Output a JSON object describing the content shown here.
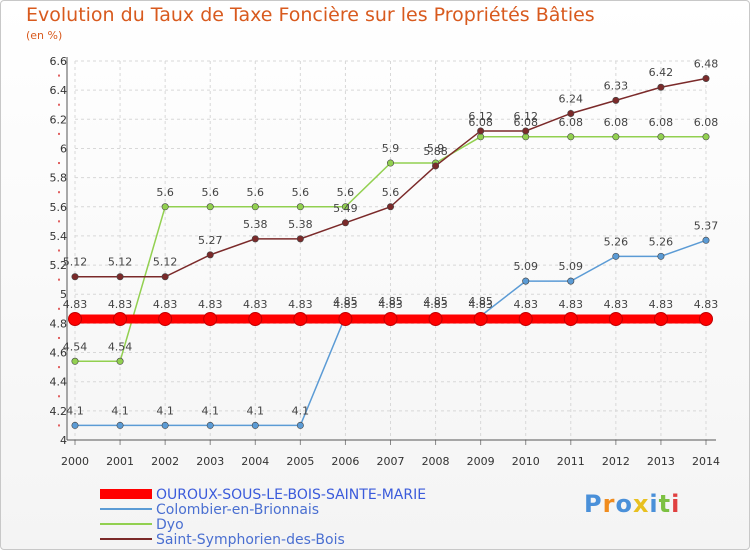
{
  "title": "Evolution du Taux de Taxe Foncière sur les Propriétés Bâties",
  "unit": "(en %)",
  "logo_text": "Proxiti",
  "chart_data": {
    "type": "line",
    "x": [
      "2000",
      "2001",
      "2002",
      "2003",
      "2004",
      "2005",
      "2006",
      "2007",
      "2008",
      "2009",
      "2010",
      "2011",
      "2012",
      "2013",
      "2014"
    ],
    "ylim": [
      4,
      6.6
    ],
    "yticks": [
      "4",
      "4.2",
      "4.4",
      "4.6",
      "4.8",
      "5",
      "5.2",
      "5.4",
      "5.6",
      "5.8",
      "6",
      "6.2",
      "6.4",
      "6.6"
    ],
    "grid": true,
    "legend_position": "bottom-left",
    "series": [
      {
        "name": "OUROUX-SOUS-LE-BOIS-SAINTE-MARIE",
        "color": "#ff0000",
        "values": [
          4.83,
          4.83,
          4.83,
          4.83,
          4.83,
          4.83,
          4.83,
          4.83,
          4.83,
          4.83,
          4.83,
          4.83,
          4.83,
          4.83,
          4.83
        ],
        "labels": [
          "4.83",
          "4.83",
          "4.83",
          "4.83",
          "4.83",
          "4.83",
          "4.83",
          "4.83",
          "4.83",
          "4.83",
          "4.83",
          "4.83",
          "4.83",
          "4.83",
          "4.83"
        ]
      },
      {
        "name": "Colombier-en-Brionnais",
        "color": "#5b9bd5",
        "values": [
          4.1,
          4.1,
          4.1,
          4.1,
          4.1,
          4.1,
          4.85,
          4.85,
          4.85,
          4.85,
          5.09,
          5.09,
          5.26,
          5.26,
          5.37
        ],
        "labels": [
          "4.1",
          "4.1",
          "4.1",
          "4.1",
          "4.1",
          "4.1",
          "4.85",
          "4.85",
          "4.85",
          "4.85",
          "5.09",
          "5.09",
          "5.26",
          "5.26",
          "5.37"
        ]
      },
      {
        "name": "Dyo",
        "color": "#92d050",
        "values": [
          4.54,
          4.54,
          5.6,
          5.6,
          5.6,
          5.6,
          5.6,
          5.9,
          5.9,
          6.08,
          6.08,
          6.08,
          6.08,
          6.08,
          6.08
        ],
        "labels": [
          "4.54",
          "4.54",
          "5.6",
          "5.6",
          "5.6",
          "5.6",
          "5.6",
          "5.9",
          "5.9",
          "6.08",
          "6.08",
          "6.08",
          "6.08",
          "6.08",
          "6.08"
        ]
      },
      {
        "name": "Saint-Symphorien-des-Bois",
        "color": "#7b2a2a",
        "values": [
          5.12,
          5.12,
          5.12,
          5.27,
          5.38,
          5.38,
          5.49,
          5.6,
          5.88,
          6.12,
          6.12,
          6.24,
          6.33,
          6.42,
          6.48
        ],
        "labels": [
          "5.12",
          "5.12",
          "5.12",
          "5.27",
          "5.38",
          "5.38",
          "5.49",
          "5.6",
          "5.88",
          "6.12",
          "6.12",
          "6.24",
          "6.33",
          "6.42",
          "6.48"
        ]
      }
    ]
  }
}
